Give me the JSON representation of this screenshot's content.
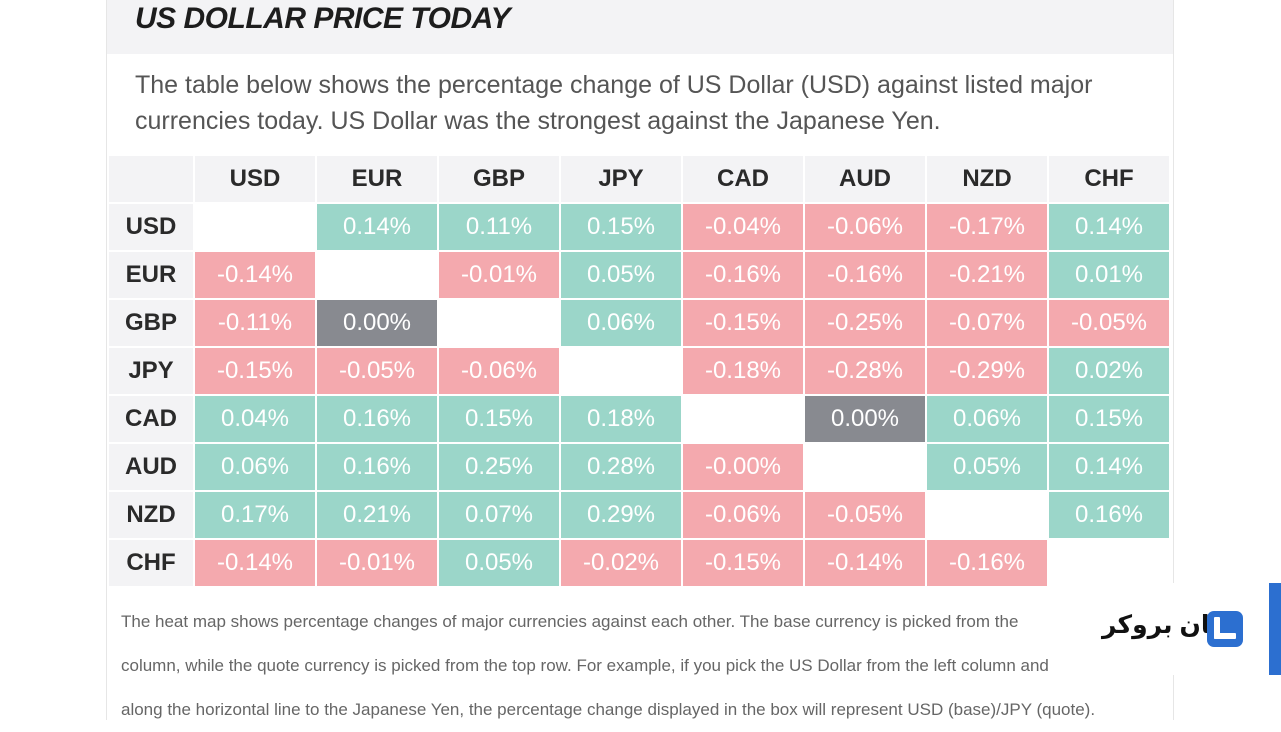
{
  "header": {
    "title": "US DOLLAR PRICE TODAY"
  },
  "intro": "The table below shows the percentage change of US Dollar (USD) against listed major currencies today. US Dollar was the strongest against the Japanese Yen.",
  "chart_data": {
    "type": "heatmap",
    "columns": [
      "USD",
      "EUR",
      "GBP",
      "JPY",
      "CAD",
      "AUD",
      "NZD",
      "CHF"
    ],
    "rows": [
      {
        "label": "USD",
        "cells": [
          "",
          "0.14%",
          "0.11%",
          "0.15%",
          "-0.04%",
          "-0.06%",
          "-0.17%",
          "0.14%"
        ]
      },
      {
        "label": "EUR",
        "cells": [
          "-0.14%",
          "",
          "-0.01%",
          "0.05%",
          "-0.16%",
          "-0.16%",
          "-0.21%",
          "0.01%"
        ]
      },
      {
        "label": "GBP",
        "cells": [
          "-0.11%",
          "0.00%",
          "",
          "0.06%",
          "-0.15%",
          "-0.25%",
          "-0.07%",
          "-0.05%"
        ]
      },
      {
        "label": "JPY",
        "cells": [
          "-0.15%",
          "-0.05%",
          "-0.06%",
          "",
          "-0.18%",
          "-0.28%",
          "-0.29%",
          "0.02%"
        ]
      },
      {
        "label": "CAD",
        "cells": [
          "0.04%",
          "0.16%",
          "0.15%",
          "0.18%",
          "",
          "0.00%",
          "0.06%",
          "0.15%"
        ]
      },
      {
        "label": "AUD",
        "cells": [
          "0.06%",
          "0.16%",
          "0.25%",
          "0.28%",
          "-0.00%",
          "",
          "0.05%",
          "0.14%"
        ]
      },
      {
        "label": "NZD",
        "cells": [
          "0.17%",
          "0.21%",
          "0.07%",
          "0.29%",
          "-0.06%",
          "-0.05%",
          "",
          "0.16%"
        ]
      },
      {
        "label": "CHF",
        "cells": [
          "-0.14%",
          "-0.01%",
          "0.05%",
          "-0.02%",
          "-0.15%",
          "-0.14%",
          "-0.16%",
          ""
        ]
      }
    ],
    "colors": {
      "positive": "#9bd6c9",
      "negative": "#f4a9ae",
      "zero": "#888a90"
    }
  },
  "footer": {
    "lines": [
      "The heat map shows percentage changes of major currencies against each other. The base currency is picked from the",
      "column, while the quote currency is picked from the top row. For example, if you pick the US Dollar from the left column and",
      "along the horizontal line to the Japanese Yen, the percentage change displayed in the box will represent USD (base)/JPY (quote)."
    ]
  },
  "brand": {
    "name": "لیان بروکر",
    "accent": "#2c6fd0"
  }
}
